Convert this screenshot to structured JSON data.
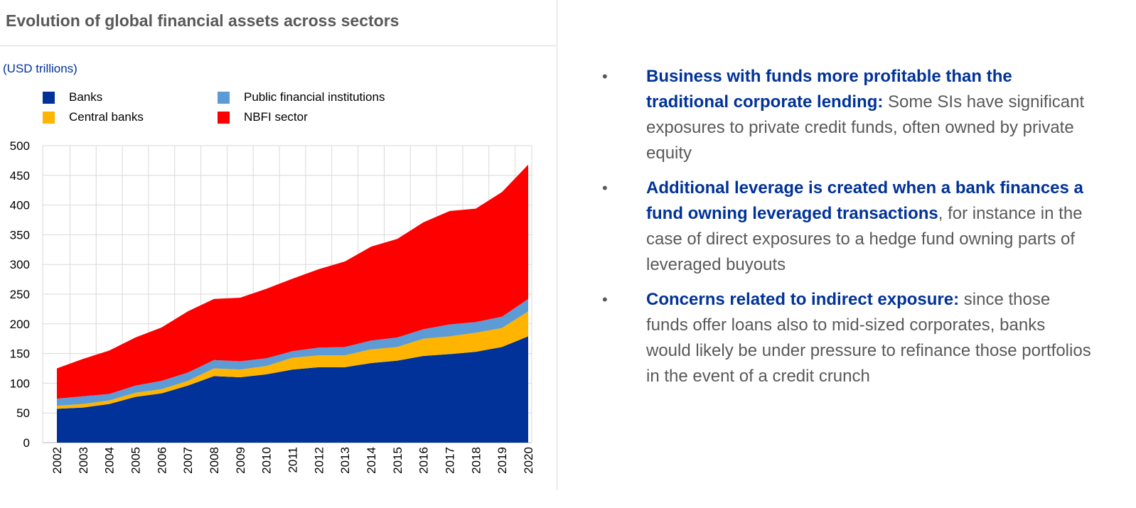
{
  "title": "Evolution of global financial assets across sectors",
  "unit_label": "(USD trillions)",
  "chart_data": {
    "type": "area",
    "stacked": true,
    "title": "Evolution of global financial assets across sectors",
    "ylabel": "(USD trillions)",
    "ylim": [
      0,
      500
    ],
    "yticks": [
      0,
      50,
      100,
      150,
      200,
      250,
      300,
      350,
      400,
      450,
      500
    ],
    "grid": true,
    "legend_position": "top",
    "x": [
      "2002",
      "2003",
      "2004",
      "2005",
      "2006",
      "2007",
      "2008",
      "2009",
      "2010",
      "2011",
      "2012",
      "2013",
      "2014",
      "2015",
      "2016",
      "2017",
      "2018",
      "2019",
      "2020"
    ],
    "series": [
      {
        "name": "Banks",
        "color": "#003299",
        "values": [
          57,
          59,
          65,
          77,
          83,
          96,
          112,
          110,
          115,
          123,
          127,
          127,
          134,
          138,
          146,
          149,
          153,
          161,
          179
        ]
      },
      {
        "name": "Central banks",
        "color": "#FFB400",
        "values": [
          5,
          6,
          6,
          7,
          7,
          8,
          13,
          13,
          14,
          20,
          20,
          20,
          23,
          23,
          29,
          30,
          32,
          32,
          42
        ]
      },
      {
        "name": "Public financial institutions",
        "color": "#5C9BD5",
        "values": [
          12,
          13,
          11,
          12,
          14,
          14,
          14,
          14,
          13,
          11,
          13,
          14,
          15,
          16,
          16,
          20,
          18,
          19,
          21
        ]
      },
      {
        "name": "NBFI sector",
        "color": "#FF0000",
        "values": [
          51,
          63,
          73,
          81,
          90,
          103,
          103,
          107,
          117,
          122,
          132,
          144,
          158,
          166,
          180,
          191,
          191,
          210,
          226
        ]
      }
    ]
  },
  "bullets": [
    {
      "bold": "Business with funds more profitable than the traditional corporate lending:",
      "text": " Some SIs have significant exposures to private credit funds, often owned by private equity"
    },
    {
      "bold": "Additional leverage is created when a bank finances a fund owning leveraged transactions",
      "text": ", for instance in the case of direct exposures to a hedge fund owning parts of leveraged buyouts"
    },
    {
      "bold": "Concerns related to indirect exposure:",
      "text": " since those funds offer loans also to mid-sized corporates, banks would likely be under pressure to refinance those portfolios in the event of a credit crunch"
    }
  ],
  "bullet_symbol": "•"
}
